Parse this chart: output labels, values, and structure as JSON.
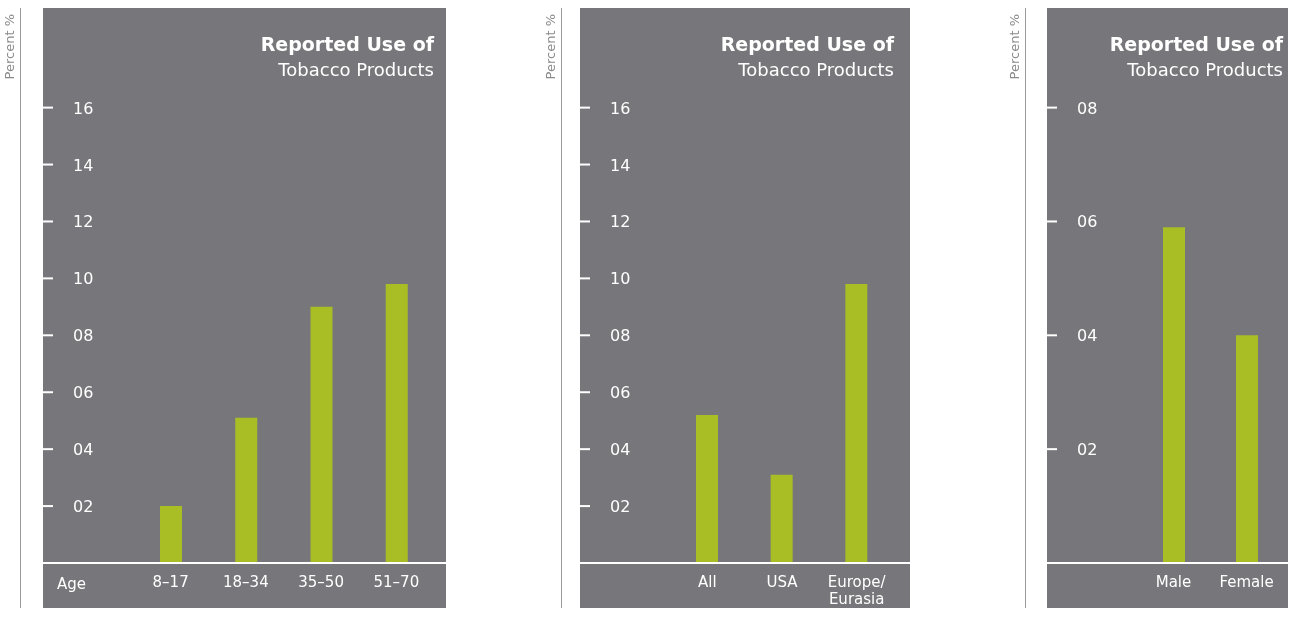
{
  "chart_data": [
    {
      "type": "bar",
      "title": "Reported Use of",
      "subtitle": "Tobacco Products",
      "xlabel": "Age",
      "ylabel": "Percent %",
      "categories": [
        "8–17",
        "18–34",
        "35–50",
        "51–70"
      ],
      "values": [
        2.0,
        5.1,
        9.0,
        9.8
      ],
      "color": "#a9bd25",
      "ylim": [
        0,
        19.5
      ],
      "yticks": [
        {
          "value": 2,
          "label": "02"
        },
        {
          "value": 4,
          "label": "04"
        },
        {
          "value": 6,
          "label": "06"
        },
        {
          "value": 8,
          "label": "08"
        },
        {
          "value": 10,
          "label": "10"
        },
        {
          "value": 12,
          "label": "12"
        },
        {
          "value": 14,
          "label": "14"
        },
        {
          "value": 16,
          "label": "16"
        }
      ]
    },
    {
      "type": "bar",
      "title": "Reported Use of",
      "subtitle": "Tobacco Products",
      "ylabel": "Percent %",
      "categories": [
        "All",
        "USA",
        "Europe/Eurasia"
      ],
      "values": [
        5.2,
        3.1,
        9.8
      ],
      "color": "#a9bd25",
      "ylim": [
        0,
        19.5
      ],
      "yticks": [
        {
          "value": 2,
          "label": "02"
        },
        {
          "value": 4,
          "label": "04"
        },
        {
          "value": 6,
          "label": "06"
        },
        {
          "value": 8,
          "label": "08"
        },
        {
          "value": 10,
          "label": "10"
        },
        {
          "value": 12,
          "label": "12"
        },
        {
          "value": 14,
          "label": "14"
        },
        {
          "value": 16,
          "label": "16"
        }
      ]
    },
    {
      "type": "bar",
      "title": "Reported Use of",
      "subtitle": "Tobacco Products",
      "ylabel": "Percent %",
      "categories": [
        "Male",
        "Female"
      ],
      "values": [
        5.9,
        4.0
      ],
      "color": "#a9bd25",
      "ylim": [
        0,
        9.75
      ],
      "yticks": [
        {
          "value": 2,
          "label": "02"
        },
        {
          "value": 4,
          "label": "04"
        },
        {
          "value": 6,
          "label": "06"
        },
        {
          "value": 8,
          "label": "08"
        }
      ]
    }
  ]
}
